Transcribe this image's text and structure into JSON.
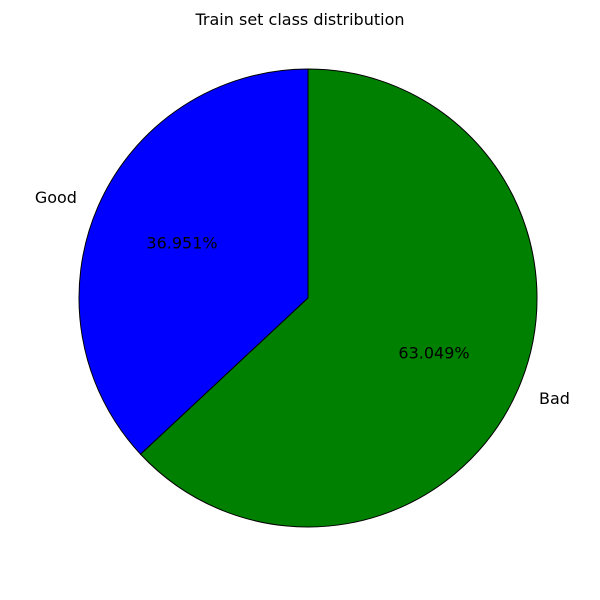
{
  "chart_data": {
    "type": "pie",
    "title": "Train set class distribution",
    "categories": [
      "Good",
      "Bad"
    ],
    "values": [
      36.951,
      63.049
    ],
    "value_labels": [
      "36.951%",
      "63.049%"
    ],
    "colors": [
      "#0000ff",
      "#008000"
    ],
    "start_angle_deg": 90,
    "direction": "counterclockwise",
    "edge_color": "#000000"
  }
}
